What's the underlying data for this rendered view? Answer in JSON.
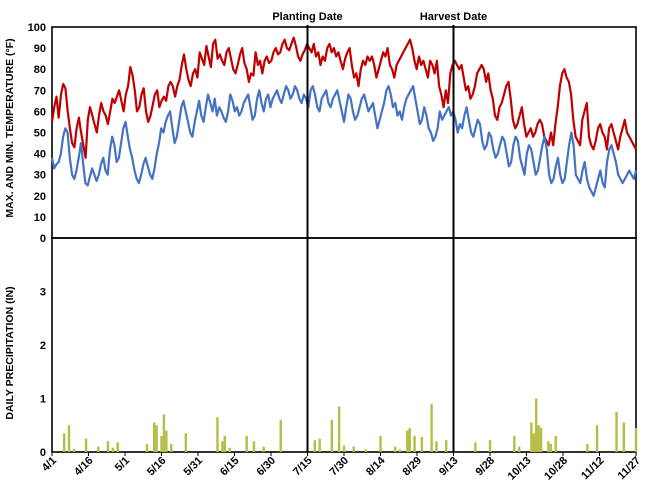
{
  "chart_data": {
    "type": "line",
    "title": "",
    "xlabel": "",
    "x_tick_labels": [
      "4/1",
      "4/16",
      "5/1",
      "5/16",
      "5/31",
      "6/15",
      "6/30",
      "7/15",
      "7/30",
      "8/14",
      "8/29",
      "9/13",
      "9/28",
      "10/13",
      "10/28",
      "11/12",
      "11/27"
    ],
    "start_date": "4/1",
    "end_date": "11/27",
    "temperature_panel": {
      "ylabel": "MAX. AND MIN. TEMPERATURE (°F)",
      "ylim": [
        0,
        100
      ],
      "yticks": [
        0,
        10,
        20,
        30,
        40,
        50,
        60,
        70,
        80,
        90,
        100
      ],
      "series": [
        {
          "color": "#c00000",
          "values": [
            55,
            62,
            67,
            57,
            68,
            73,
            71,
            60,
            52,
            45,
            43,
            52,
            57,
            50,
            44,
            38,
            56,
            62,
            58,
            54,
            50,
            58,
            64,
            60,
            58,
            54,
            60,
            66,
            64,
            67,
            70,
            65,
            60,
            68,
            72,
            81,
            77,
            70,
            60,
            62,
            68,
            71,
            60,
            55,
            58,
            63,
            68,
            70,
            62,
            65,
            67,
            65,
            72,
            74,
            72,
            67,
            72,
            75,
            82,
            87,
            80,
            75,
            72,
            78,
            80,
            76,
            88,
            85,
            82,
            91,
            86,
            81,
            92,
            94,
            85,
            87,
            84,
            82,
            88,
            90,
            85,
            80,
            78,
            82,
            87,
            90,
            83,
            80,
            74,
            78,
            77,
            88,
            82,
            84,
            78,
            84,
            86,
            83,
            84,
            88,
            90,
            87,
            88,
            92,
            94,
            90,
            89,
            92,
            95,
            91,
            86,
            84,
            87,
            89,
            92,
            90,
            88,
            92,
            86,
            88,
            82,
            86,
            84,
            90,
            92,
            88,
            90,
            86,
            88,
            84,
            80,
            85,
            88,
            90,
            82,
            76,
            78,
            72,
            80,
            84,
            82,
            86,
            84,
            86,
            82,
            76,
            80,
            84,
            88,
            86,
            90,
            82,
            80,
            76,
            82,
            84,
            86,
            88,
            90,
            92,
            94,
            90,
            84,
            80,
            86,
            82,
            84,
            80,
            76,
            84,
            82,
            78,
            84,
            72,
            68,
            62,
            70,
            64,
            78,
            82,
            84,
            82,
            80,
            82,
            76,
            70,
            72,
            66,
            68,
            72,
            78,
            80,
            82,
            80,
            74,
            78,
            70,
            66,
            58,
            56,
            62,
            64,
            68,
            72,
            74,
            66,
            56,
            52,
            54,
            58,
            62,
            54,
            48,
            50,
            52,
            48,
            50,
            54,
            56,
            54,
            48,
            46,
            44,
            50,
            44,
            54,
            62,
            72,
            78,
            80,
            76,
            74,
            68,
            56,
            48,
            46,
            44,
            56,
            60,
            64,
            48,
            44,
            42,
            46,
            52,
            54,
            50,
            48,
            42,
            52,
            54,
            50,
            46,
            42,
            48,
            52,
            56,
            50,
            48,
            46,
            44,
            42
          ]
        },
        {
          "color": "#4472c4",
          "values": [
            38,
            33,
            35,
            36,
            40,
            48,
            52,
            50,
            38,
            30,
            28,
            32,
            38,
            45,
            35,
            26,
            25,
            29,
            33,
            30,
            27,
            30,
            35,
            38,
            32,
            30,
            42,
            48,
            44,
            36,
            38,
            45,
            52,
            55,
            48,
            42,
            38,
            32,
            28,
            26,
            30,
            35,
            38,
            34,
            30,
            28,
            33,
            40,
            45,
            52,
            50,
            55,
            58,
            60,
            52,
            45,
            48,
            55,
            62,
            65,
            60,
            55,
            50,
            48,
            55,
            60,
            65,
            58,
            55,
            62,
            68,
            64,
            60,
            66,
            58,
            62,
            60,
            57,
            55,
            60,
            68,
            65,
            60,
            62,
            58,
            60,
            64,
            66,
            68,
            62,
            56,
            58,
            66,
            70,
            64,
            60,
            66,
            68,
            62,
            66,
            68,
            70,
            66,
            64,
            68,
            72,
            70,
            66,
            68,
            72,
            70,
            66,
            64,
            68,
            66,
            62,
            70,
            72,
            68,
            62,
            60,
            66,
            68,
            70,
            64,
            62,
            66,
            68,
            70,
            65,
            60,
            55,
            62,
            68,
            66,
            60,
            56,
            58,
            62,
            66,
            68,
            64,
            60,
            62,
            64,
            58,
            52,
            56,
            60,
            64,
            70,
            72,
            68,
            62,
            64,
            58,
            60,
            56,
            62,
            66,
            68,
            70,
            72,
            66,
            60,
            54,
            56,
            62,
            58,
            52,
            50,
            46,
            48,
            52,
            60,
            56,
            58,
            60,
            62,
            58,
            60,
            56,
            50,
            54,
            52,
            58,
            62,
            56,
            50,
            48,
            52,
            56,
            54,
            46,
            42,
            44,
            50,
            48,
            42,
            38,
            40,
            44,
            48,
            46,
            40,
            34,
            36,
            44,
            48,
            46,
            38,
            34,
            30,
            40,
            44,
            42,
            36,
            30,
            32,
            38,
            44,
            48,
            42,
            30,
            26,
            28,
            34,
            38,
            30,
            26,
            28,
            36,
            44,
            50,
            44,
            30,
            28,
            26,
            32,
            36,
            28,
            24,
            22,
            20,
            24,
            28,
            32,
            26,
            24,
            36,
            42,
            44,
            40,
            36,
            30,
            28,
            26,
            28,
            30,
            32,
            30,
            28,
            32
          ]
        }
      ],
      "vertical_markers": [
        {
          "label": "Planting Date",
          "date": "7/15"
        },
        {
          "label": "Harvest Date",
          "date": "9/13"
        }
      ]
    },
    "precipitation_panel": {
      "type": "bar",
      "ylabel": "DAILY PRECIPITATION (IN)",
      "ylim": [
        0,
        4
      ],
      "yticks": [
        0,
        1,
        2,
        3
      ],
      "color": "#b5bd45",
      "events": [
        {
          "date": "4/6",
          "value": 0.35
        },
        {
          "date": "4/8",
          "value": 0.5
        },
        {
          "date": "4/10",
          "value": 0.06
        },
        {
          "date": "4/15",
          "value": 0.25
        },
        {
          "date": "4/20",
          "value": 0.1
        },
        {
          "date": "4/24",
          "value": 0.2
        },
        {
          "date": "4/26",
          "value": 0.08
        },
        {
          "date": "4/28",
          "value": 0.18
        },
        {
          "date": "5/10",
          "value": 0.15
        },
        {
          "date": "5/13",
          "value": 0.55
        },
        {
          "date": "5/14",
          "value": 0.5
        },
        {
          "date": "5/16",
          "value": 0.3
        },
        {
          "date": "5/17",
          "value": 0.7
        },
        {
          "date": "5/18",
          "value": 0.4
        },
        {
          "date": "5/20",
          "value": 0.15
        },
        {
          "date": "5/26",
          "value": 0.35
        },
        {
          "date": "6/8",
          "value": 0.65
        },
        {
          "date": "6/10",
          "value": 0.2
        },
        {
          "date": "6/11",
          "value": 0.3
        },
        {
          "date": "6/13",
          "value": 0.08
        },
        {
          "date": "6/20",
          "value": 0.3
        },
        {
          "date": "6/23",
          "value": 0.2
        },
        {
          "date": "6/27",
          "value": 0.1
        },
        {
          "date": "7/4",
          "value": 0.6
        },
        {
          "date": "7/18",
          "value": 0.22
        },
        {
          "date": "7/20",
          "value": 0.25
        },
        {
          "date": "7/25",
          "value": 0.6
        },
        {
          "date": "7/28",
          "value": 0.85
        },
        {
          "date": "7/30",
          "value": 0.12
        },
        {
          "date": "8/3",
          "value": 0.1
        },
        {
          "date": "8/8",
          "value": 0.05
        },
        {
          "date": "8/14",
          "value": 0.3
        },
        {
          "date": "8/20",
          "value": 0.1
        },
        {
          "date": "8/22",
          "value": 0.05
        },
        {
          "date": "8/25",
          "value": 0.4
        },
        {
          "date": "8/26",
          "value": 0.45
        },
        {
          "date": "8/28",
          "value": 0.3
        },
        {
          "date": "8/31",
          "value": 0.28
        },
        {
          "date": "9/4",
          "value": 0.9
        },
        {
          "date": "9/6",
          "value": 0.2
        },
        {
          "date": "9/10",
          "value": 0.22
        },
        {
          "date": "9/22",
          "value": 0.18
        },
        {
          "date": "9/28",
          "value": 0.22
        },
        {
          "date": "10/8",
          "value": 0.3
        },
        {
          "date": "10/10",
          "value": 0.1
        },
        {
          "date": "10/15",
          "value": 0.55
        },
        {
          "date": "10/16",
          "value": 0.35
        },
        {
          "date": "10/17",
          "value": 1.0
        },
        {
          "date": "10/18",
          "value": 0.5
        },
        {
          "date": "10/19",
          "value": 0.45
        },
        {
          "date": "10/22",
          "value": 0.2
        },
        {
          "date": "10/23",
          "value": 0.15
        },
        {
          "date": "10/25",
          "value": 0.3
        },
        {
          "date": "11/7",
          "value": 0.15
        },
        {
          "date": "11/11",
          "value": 0.5
        },
        {
          "date": "11/19",
          "value": 0.75
        },
        {
          "date": "11/22",
          "value": 0.55
        },
        {
          "date": "11/27",
          "value": 0.45
        }
      ]
    }
  }
}
